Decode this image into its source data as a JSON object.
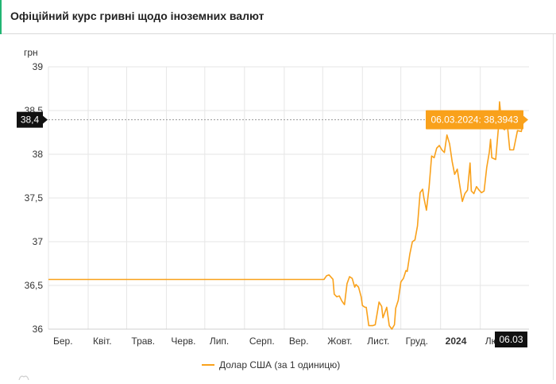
{
  "header": {
    "title": "Офіційний курс гривні щодо іноземних валют"
  },
  "colors": {
    "accent": "#22b573",
    "series": "#f9a11b",
    "grid": "#e6e6e6",
    "marker_bg": "#111111"
  },
  "chart_data": {
    "type": "line",
    "ylabel": "грн",
    "ylim": [
      36,
      39
    ],
    "yticks": [
      {
        "value": 36,
        "label": "36"
      },
      {
        "value": 36.5,
        "label": "36,5"
      },
      {
        "value": 37,
        "label": "37"
      },
      {
        "value": 37.5,
        "label": "37,5"
      },
      {
        "value": 38,
        "label": "38"
      },
      {
        "value": 38.5,
        "label": "38,5"
      },
      {
        "value": 39,
        "label": "39"
      }
    ],
    "xlim": [
      "2023-03-01",
      "2024-03-10"
    ],
    "xticks": [
      {
        "date": "2023-03-01",
        "label": "Бер.",
        "bold": false
      },
      {
        "date": "2023-04-01",
        "label": "Квіт.",
        "bold": false
      },
      {
        "date": "2023-05-01",
        "label": "Трав.",
        "bold": false
      },
      {
        "date": "2023-06-01",
        "label": "Черв.",
        "bold": false
      },
      {
        "date": "2023-07-01",
        "label": "Лип.",
        "bold": false
      },
      {
        "date": "2023-08-01",
        "label": "Серп.",
        "bold": false
      },
      {
        "date": "2023-09-01",
        "label": "Вер.",
        "bold": false
      },
      {
        "date": "2023-10-01",
        "label": "Жовт.",
        "bold": false
      },
      {
        "date": "2023-11-01",
        "label": "Лист.",
        "bold": false
      },
      {
        "date": "2023-12-01",
        "label": "Груд.",
        "bold": false
      },
      {
        "date": "2024-01-01",
        "label": "2024",
        "bold": true
      },
      {
        "date": "2024-02-01",
        "label": "Лют.",
        "bold": false
      }
    ],
    "grid": true,
    "series": [
      {
        "name": "Долар США (за 1 одиницю)",
        "color": "#f9a11b",
        "points": [
          [
            "2023-03-01",
            36.5686
          ],
          [
            "2023-10-02",
            36.5686
          ],
          [
            "2023-10-04",
            36.61
          ],
          [
            "2023-10-06",
            36.62
          ],
          [
            "2023-10-09",
            36.57
          ],
          [
            "2023-10-10",
            36.4
          ],
          [
            "2023-10-12",
            36.37
          ],
          [
            "2023-10-14",
            36.38
          ],
          [
            "2023-10-16",
            36.32
          ],
          [
            "2023-10-18",
            36.28
          ],
          [
            "2023-10-20",
            36.52
          ],
          [
            "2023-10-22",
            36.6
          ],
          [
            "2023-10-24",
            36.58
          ],
          [
            "2023-10-26",
            36.48
          ],
          [
            "2023-10-27",
            36.51
          ],
          [
            "2023-10-29",
            36.48
          ],
          [
            "2023-10-31",
            36.37
          ],
          [
            "2023-11-01",
            36.27
          ],
          [
            "2023-11-03",
            36.25
          ],
          [
            "2023-11-04",
            36.25
          ],
          [
            "2023-11-06",
            36.04
          ],
          [
            "2023-11-09",
            36.04
          ],
          [
            "2023-11-11",
            36.05
          ],
          [
            "2023-11-13",
            36.22
          ],
          [
            "2023-11-14",
            36.31
          ],
          [
            "2023-11-16",
            36.26
          ],
          [
            "2023-11-17",
            36.13
          ],
          [
            "2023-11-19",
            36.21
          ],
          [
            "2023-11-20",
            36.25
          ],
          [
            "2023-11-22",
            36.04
          ],
          [
            "2023-11-24",
            36.0
          ],
          [
            "2023-11-26",
            36.05
          ],
          [
            "2023-11-27",
            36.24
          ],
          [
            "2023-11-29",
            36.33
          ],
          [
            "2023-12-01",
            36.54
          ],
          [
            "2023-12-03",
            36.58
          ],
          [
            "2023-12-05",
            36.67
          ],
          [
            "2023-12-06",
            36.66
          ],
          [
            "2023-12-08",
            36.86
          ],
          [
            "2023-12-10",
            37.0
          ],
          [
            "2023-12-12",
            37.02
          ],
          [
            "2023-12-14",
            37.18
          ],
          [
            "2023-12-16",
            37.56
          ],
          [
            "2023-12-18",
            37.6
          ],
          [
            "2023-12-19",
            37.5
          ],
          [
            "2023-12-21",
            37.36
          ],
          [
            "2023-12-23",
            37.62
          ],
          [
            "2023-12-25",
            37.98
          ],
          [
            "2023-12-27",
            37.96
          ],
          [
            "2023-12-29",
            38.07
          ],
          [
            "2023-12-31",
            38.1
          ],
          [
            "2024-01-02",
            38.05
          ],
          [
            "2024-01-04",
            38.02
          ],
          [
            "2024-01-06",
            38.22
          ],
          [
            "2024-01-08",
            38.12
          ],
          [
            "2024-01-10",
            37.92
          ],
          [
            "2024-01-12",
            37.77
          ],
          [
            "2024-01-14",
            37.83
          ],
          [
            "2024-01-16",
            37.64
          ],
          [
            "2024-01-18",
            37.46
          ],
          [
            "2024-01-20",
            37.55
          ],
          [
            "2024-01-22",
            37.59
          ],
          [
            "2024-01-24",
            37.9
          ],
          [
            "2024-01-25",
            37.58
          ],
          [
            "2024-01-27",
            37.55
          ],
          [
            "2024-01-29",
            37.63
          ],
          [
            "2024-01-31",
            37.59
          ],
          [
            "2024-02-02",
            37.56
          ],
          [
            "2024-02-04",
            37.58
          ],
          [
            "2024-02-06",
            37.85
          ],
          [
            "2024-02-08",
            38.02
          ],
          [
            "2024-02-09",
            38.17
          ],
          [
            "2024-02-10",
            37.96
          ],
          [
            "2024-02-13",
            37.94
          ],
          [
            "2024-02-15",
            38.28
          ],
          [
            "2024-02-16",
            38.6
          ],
          [
            "2024-02-18",
            38.3
          ],
          [
            "2024-02-20",
            38.28
          ],
          [
            "2024-02-22",
            38.35
          ],
          [
            "2024-02-24",
            38.05
          ],
          [
            "2024-02-27",
            38.05
          ],
          [
            "2024-03-01",
            38.27
          ],
          [
            "2024-03-04",
            38.26
          ],
          [
            "2024-03-06",
            38.3943
          ]
        ]
      }
    ],
    "tooltip": {
      "label": "06.03.2024: 38,3943",
      "date": "2024-03-06",
      "value": 38.3943
    },
    "crosshair_y_label": "38,4",
    "crosshair_x_label": "06.03",
    "legend": {
      "label": "Долар США (за 1 одиницю)",
      "position": "bottom"
    }
  }
}
